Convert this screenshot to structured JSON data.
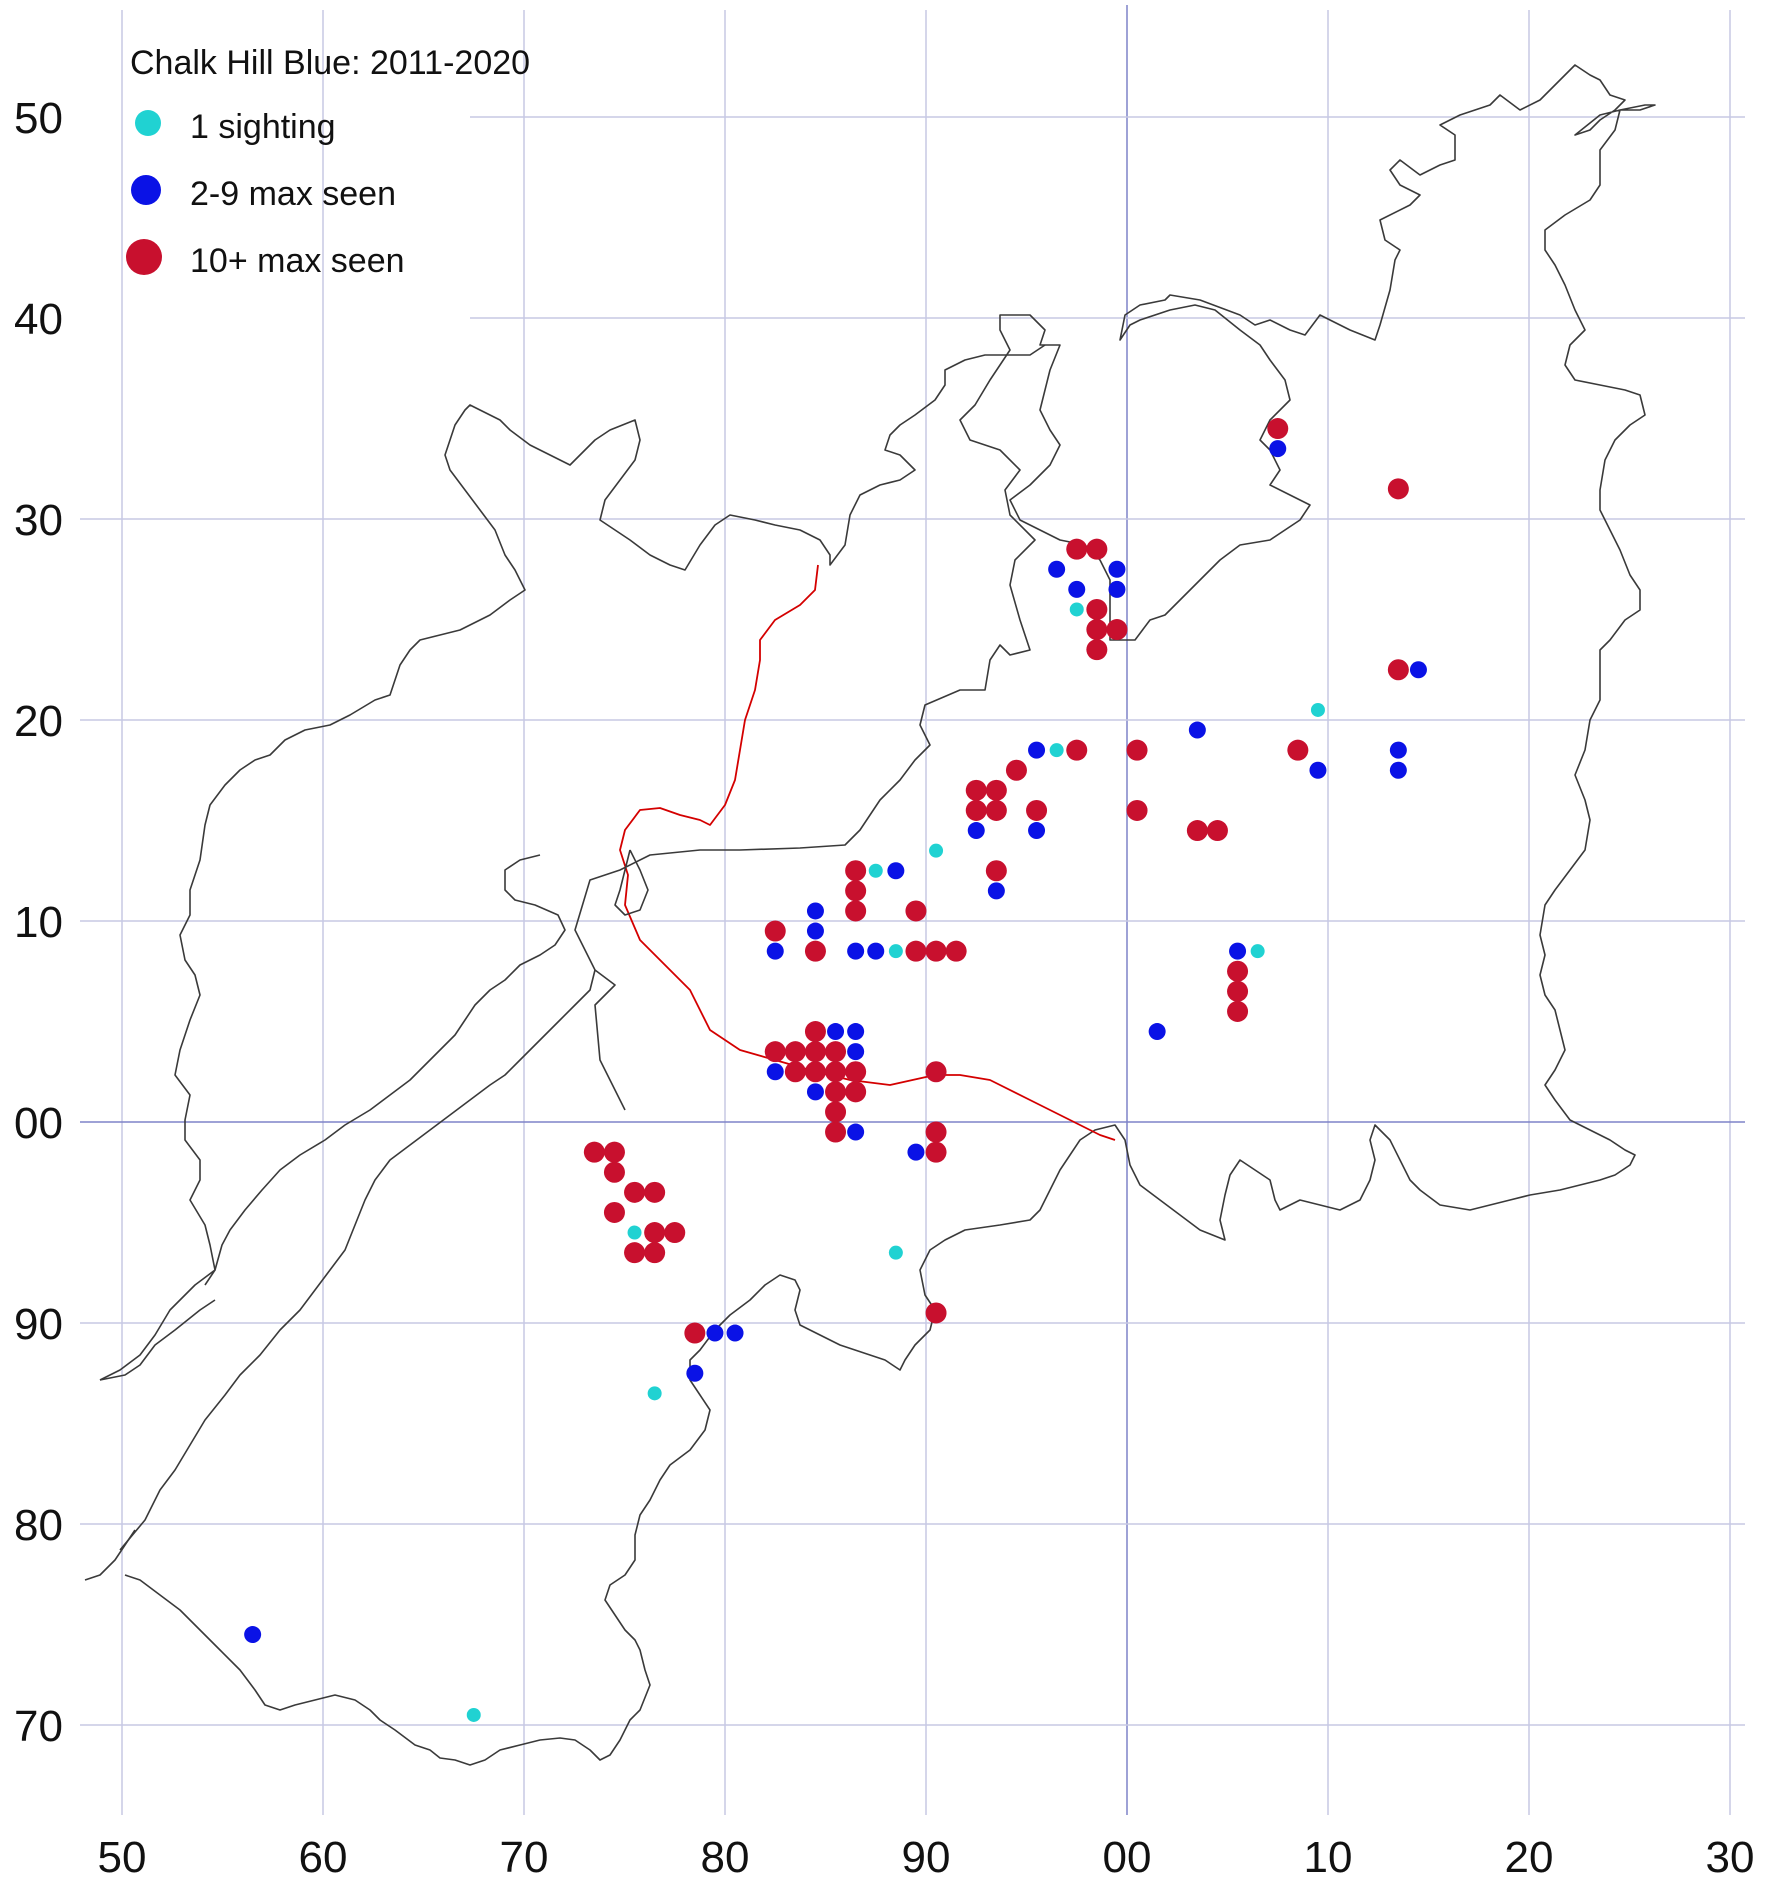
{
  "legend": {
    "title": "Chalk Hill Blue:  2011-2020",
    "items": [
      {
        "label": "1 sighting",
        "color": "#20d2d2",
        "size": "small"
      },
      {
        "label": "2-9 max seen",
        "color": "#0a12e6",
        "size": "medium"
      },
      {
        "label": "10+ max seen",
        "color": "#c8102e",
        "size": "large"
      }
    ]
  },
  "axes": {
    "x_ticks": [
      "50",
      "60",
      "70",
      "80",
      "90",
      "00",
      "10",
      "20",
      "30"
    ],
    "y_ticks": [
      "50",
      "40",
      "30",
      "20",
      "10",
      "00",
      "90",
      "80",
      "70"
    ]
  },
  "colors": {
    "sighting_1": "#20d2d2",
    "sighting_2_9": "#0a12e6",
    "sighting_10_plus": "#c8102e",
    "grid": "#c7c9e4",
    "axis_highlight": "#7f83c8",
    "coastline": "#3a3a3a",
    "boundary": "#d40000"
  },
  "chart_data": {
    "type": "scatter",
    "x_range": [
      450,
      530
    ],
    "y_range": [
      70,
      150
    ],
    "x_grid": [
      450,
      460,
      470,
      480,
      490,
      500,
      510,
      520,
      530
    ],
    "y_grid": [
      70,
      80,
      90,
      100,
      110,
      120,
      130,
      140,
      150
    ],
    "series": [
      {
        "name": "1 sighting",
        "color": "#20d2d2",
        "points": [
          [
            497.5,
            125.5
          ],
          [
            496.5,
            118.5
          ],
          [
            490.5,
            113.5
          ],
          [
            487.5,
            112.5
          ],
          [
            488.5,
            108.5
          ],
          [
            506.5,
            108.5
          ],
          [
            509.5,
            120.5
          ],
          [
            475.5,
            94.5
          ],
          [
            488.5,
            93.5
          ],
          [
            476.5,
            86.5
          ],
          [
            467.5,
            70.5
          ]
        ]
      },
      {
        "name": "2-9 max seen",
        "color": "#0a12e6",
        "points": [
          [
            507.5,
            133.5
          ],
          [
            496.5,
            127.5
          ],
          [
            499.5,
            127.5
          ],
          [
            497.5,
            126.5
          ],
          [
            499.5,
            126.5
          ],
          [
            514.5,
            122.5
          ],
          [
            503.5,
            119.5
          ],
          [
            495.5,
            118.5
          ],
          [
            513.5,
            118.5
          ],
          [
            509.5,
            117.5
          ],
          [
            513.5,
            117.5
          ],
          [
            492.5,
            114.5
          ],
          [
            495.5,
            114.5
          ],
          [
            488.5,
            112.5
          ],
          [
            493.5,
            111.5
          ],
          [
            484.5,
            110.5
          ],
          [
            484.5,
            109.5
          ],
          [
            482.5,
            108.5
          ],
          [
            486.5,
            108.5
          ],
          [
            487.5,
            108.5
          ],
          [
            505.5,
            108.5
          ],
          [
            485.5,
            104.5
          ],
          [
            486.5,
            104.5
          ],
          [
            501.5,
            104.5
          ],
          [
            486.5,
            103.5
          ],
          [
            482.5,
            102.5
          ],
          [
            484.5,
            101.5
          ],
          [
            486.5,
            99.5
          ],
          [
            489.5,
            98.5
          ],
          [
            479.5,
            89.5
          ],
          [
            480.5,
            89.5
          ],
          [
            478.5,
            87.5
          ],
          [
            456.5,
            74.5
          ]
        ]
      },
      {
        "name": "10+ max seen",
        "color": "#c8102e",
        "points": [
          [
            507.5,
            134.5
          ],
          [
            513.5,
            131.5
          ],
          [
            497.5,
            128.5
          ],
          [
            498.5,
            128.5
          ],
          [
            498.5,
            125.5
          ],
          [
            498.5,
            124.5
          ],
          [
            499.5,
            124.5
          ],
          [
            498.5,
            123.5
          ],
          [
            513.5,
            122.5
          ],
          [
            497.5,
            118.5
          ],
          [
            500.5,
            118.5
          ],
          [
            508.5,
            118.5
          ],
          [
            494.5,
            117.5
          ],
          [
            492.5,
            116.5
          ],
          [
            493.5,
            116.5
          ],
          [
            492.5,
            115.5
          ],
          [
            493.5,
            115.5
          ],
          [
            495.5,
            115.5
          ],
          [
            500.5,
            115.5
          ],
          [
            503.5,
            114.5
          ],
          [
            504.5,
            114.5
          ],
          [
            486.5,
            112.5
          ],
          [
            493.5,
            112.5
          ],
          [
            486.5,
            111.5
          ],
          [
            486.5,
            110.5
          ],
          [
            489.5,
            110.5
          ],
          [
            482.5,
            109.5
          ],
          [
            484.5,
            108.5
          ],
          [
            489.5,
            108.5
          ],
          [
            490.5,
            108.5
          ],
          [
            491.5,
            108.5
          ],
          [
            505.5,
            107.5
          ],
          [
            505.5,
            106.5
          ],
          [
            505.5,
            105.5
          ],
          [
            484.5,
            104.5
          ],
          [
            482.5,
            103.5
          ],
          [
            483.5,
            103.5
          ],
          [
            484.5,
            103.5
          ],
          [
            485.5,
            103.5
          ],
          [
            483.5,
            102.5
          ],
          [
            484.5,
            102.5
          ],
          [
            485.5,
            102.5
          ],
          [
            486.5,
            102.5
          ],
          [
            490.5,
            102.5
          ],
          [
            485.5,
            101.5
          ],
          [
            486.5,
            101.5
          ],
          [
            485.5,
            100.5
          ],
          [
            485.5,
            99.5
          ],
          [
            490.5,
            99.5
          ],
          [
            473.5,
            98.5
          ],
          [
            474.5,
            98.5
          ],
          [
            490.5,
            98.5
          ],
          [
            474.5,
            97.5
          ],
          [
            475.5,
            96.5
          ],
          [
            476.5,
            96.5
          ],
          [
            474.5,
            95.5
          ],
          [
            476.5,
            94.5
          ],
          [
            477.5,
            94.5
          ],
          [
            475.5,
            93.5
          ],
          [
            476.5,
            93.5
          ],
          [
            490.5,
            90.5
          ],
          [
            478.5,
            89.5
          ]
        ]
      }
    ]
  }
}
